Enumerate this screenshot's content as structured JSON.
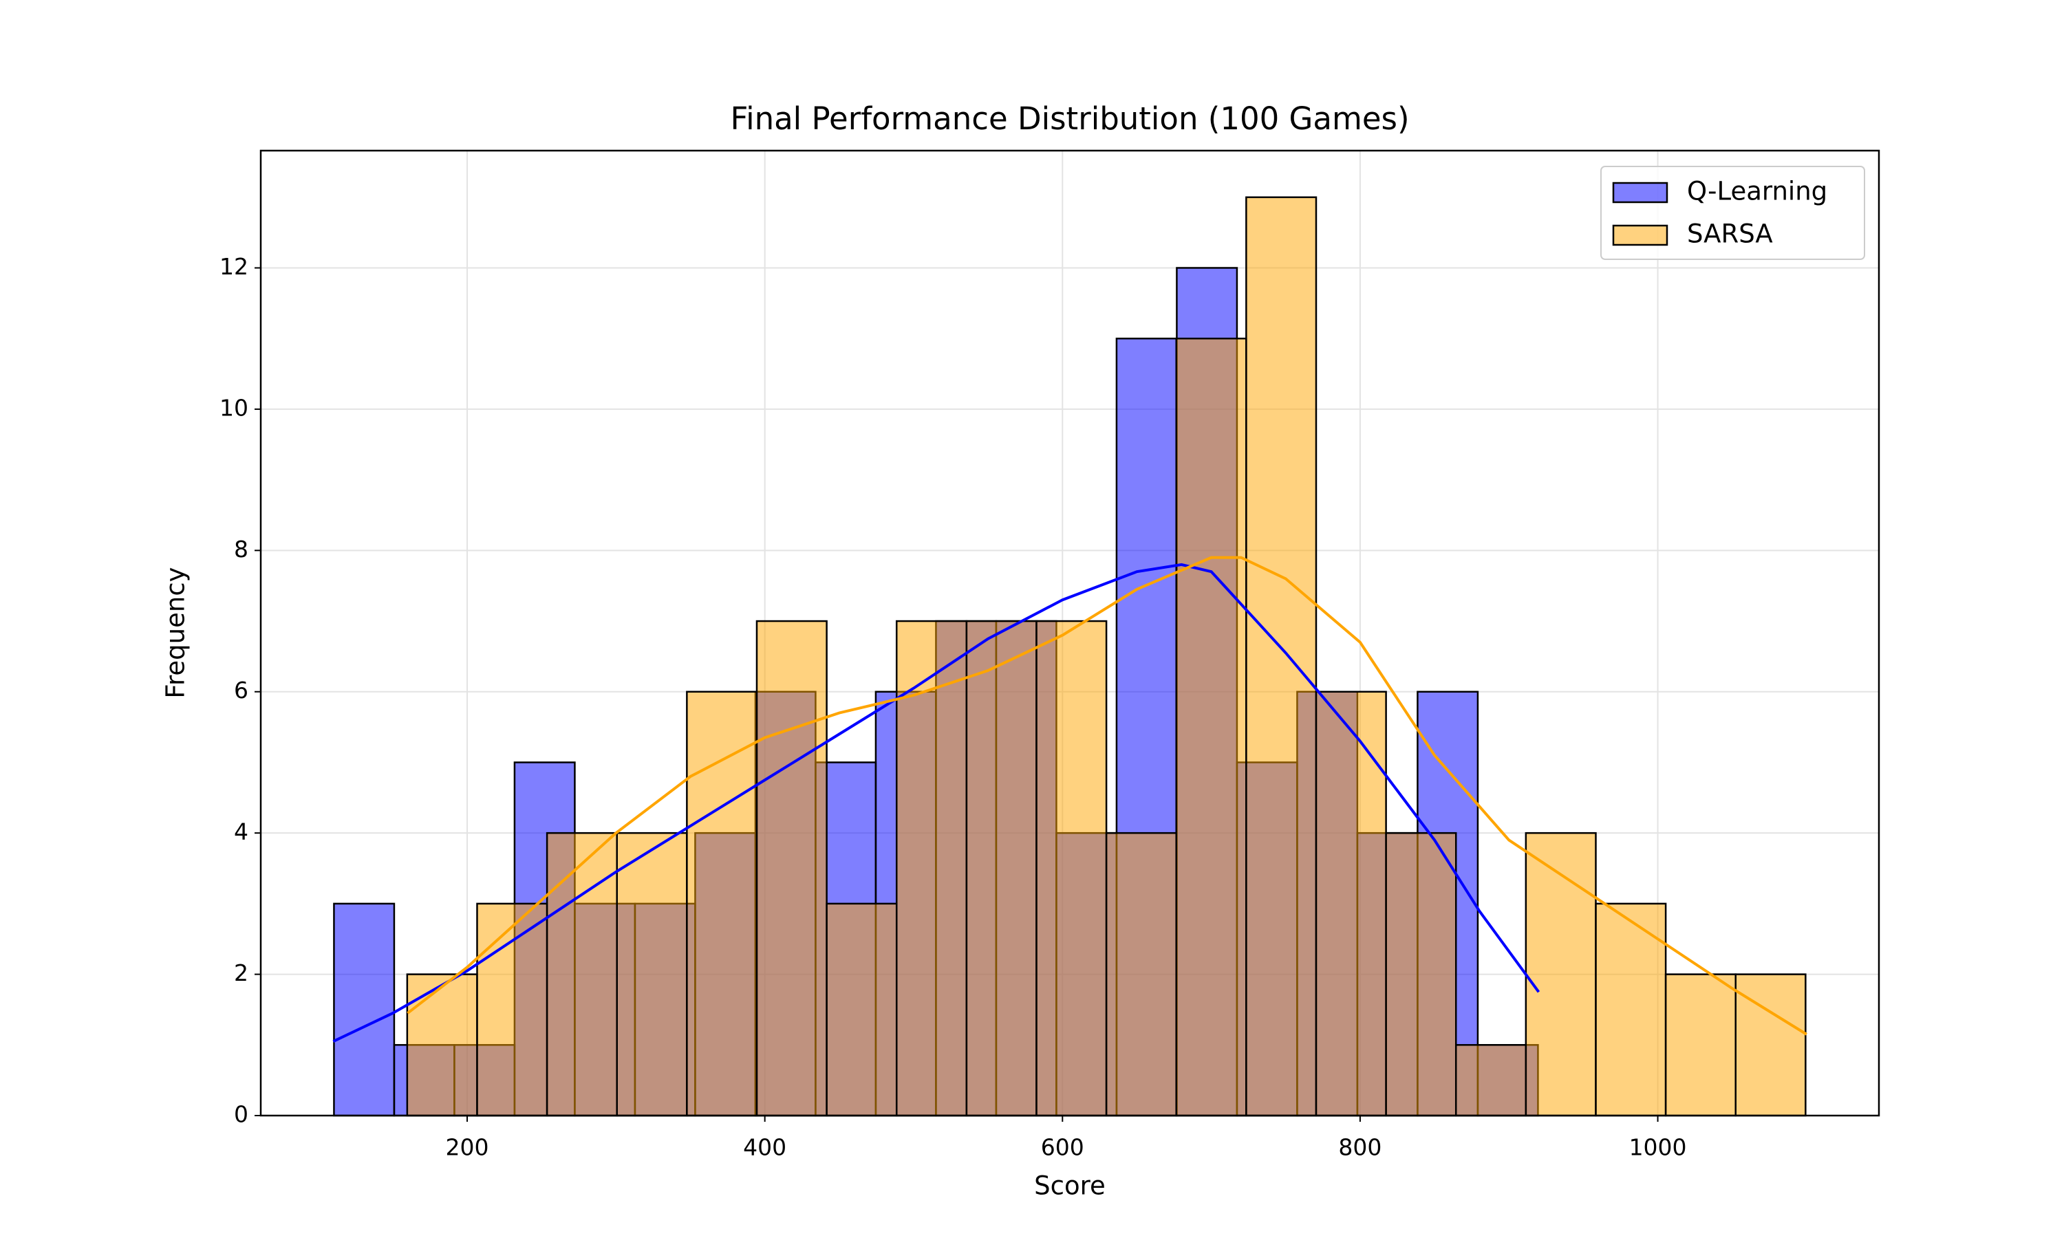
{
  "chart_data": {
    "type": "histogram",
    "title": "Final Performance Distribution (100 Games)",
    "x_label": "Score",
    "y_label": "Frequency",
    "xlim": [
      61.3,
      1148.6
    ],
    "ylim": [
      0,
      13.66
    ],
    "xticks": [
      200,
      400,
      600,
      800,
      1000
    ],
    "yticks": [
      0,
      2,
      4,
      6,
      8,
      10,
      12
    ],
    "grid": true,
    "legend": "upper right",
    "series": [
      {
        "name": "Q-Learning",
        "color": "#0000ff",
        "line_color": "#0000ff",
        "bins": [
          110.5,
          150.95,
          191.4,
          231.85,
          272.3,
          312.75,
          353.2,
          393.65,
          434.1,
          474.55,
          515,
          555.45,
          595.9,
          636.35,
          676.8,
          717.25,
          757.7,
          798.15,
          838.6,
          879.05,
          919.5
        ],
        "values": [
          3,
          1,
          1,
          5,
          3,
          3,
          4,
          6,
          5,
          6,
          7,
          7,
          4,
          11,
          12,
          5,
          6,
          4,
          6,
          1
        ],
        "kde": {
          "x": [
            110,
            150,
            200,
            250,
            300,
            350,
            400,
            450,
            500,
            550,
            600,
            650,
            680,
            700,
            750,
            800,
            850,
            880,
            920
          ],
          "y": [
            1.05,
            1.45,
            2.05,
            2.75,
            3.45,
            4.1,
            4.75,
            5.4,
            6.05,
            6.75,
            7.3,
            7.7,
            7.8,
            7.7,
            6.55,
            5.3,
            3.9,
            2.9,
            1.75
          ]
        }
      },
      {
        "name": "SARSA",
        "color": "#ffa500",
        "line_color": "#ffa500",
        "bins": [
          159.7,
          206.68,
          253.66,
          300.64,
          347.62,
          394.6,
          441.58,
          488.56,
          535.54,
          582.52,
          629.5,
          676.48,
          723.46,
          770.44,
          817.42,
          864.4,
          911.38,
          958.36,
          1005.34,
          1052.32,
          1099.3
        ],
        "values": [
          2,
          3,
          4,
          4,
          6,
          7,
          3,
          7,
          7,
          7,
          4,
          11,
          13,
          6,
          4,
          1,
          4,
          3,
          2,
          2
        ],
        "kde": {
          "x": [
            160,
            200,
            250,
            300,
            350,
            400,
            450,
            500,
            550,
            600,
            650,
            700,
            720,
            750,
            800,
            850,
            900,
            950,
            1000,
            1050,
            1100
          ],
          "y": [
            1.45,
            2.1,
            3.05,
            4.0,
            4.8,
            5.35,
            5.7,
            5.95,
            6.3,
            6.8,
            7.45,
            7.9,
            7.9,
            7.6,
            6.7,
            5.1,
            3.9,
            3.2,
            2.5,
            1.8,
            1.15
          ]
        }
      }
    ]
  }
}
